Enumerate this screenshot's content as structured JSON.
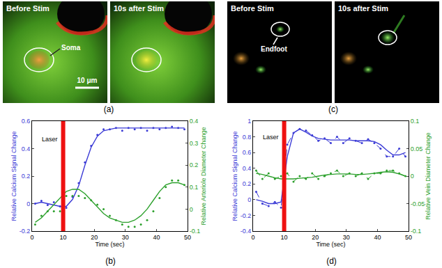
{
  "image_panels": [
    {
      "panel": "(a)",
      "images": [
        {
          "caption": "Before Stim",
          "label": "Soma",
          "scale_bar": "10 μm"
        },
        {
          "caption": "10s after Stim"
        }
      ]
    },
    {
      "panel": "(c)",
      "images": [
        {
          "caption": "Before Stim",
          "label": "Endfoot"
        },
        {
          "caption": "10s after Stim"
        }
      ]
    }
  ],
  "chart_data": [
    {
      "type": "line",
      "panel": "(b)",
      "xlabel": "Time (sec)",
      "ylabel": "Relative Calcium Signal Change",
      "y2label": "Relative Arteriole Diameter Change",
      "x": [
        1,
        3,
        5,
        7,
        9,
        11,
        13,
        15,
        17,
        19,
        21,
        23,
        25,
        27,
        29,
        31,
        33,
        35,
        37,
        39,
        41,
        43,
        45,
        47,
        49
      ],
      "xlim": [
        0,
        50
      ],
      "xticks": [
        0,
        10,
        20,
        30,
        40,
        50
      ],
      "ylim": [
        -0.2,
        0.6
      ],
      "yticks": [
        -0.2,
        0,
        0.2,
        0.4,
        0.6
      ],
      "y2lim": [
        -0.1,
        0.4
      ],
      "y2ticks": [
        -0.1,
        0,
        0.1,
        0.2,
        0.3,
        0.4
      ],
      "grid": false,
      "annotations": [
        {
          "text": "Laser",
          "x": 10,
          "y": 0.47
        }
      ],
      "series": [
        {
          "color": "#3b3bd6",
          "axis": "y",
          "marker": "circle",
          "line_style": "none",
          "values": [
            0.0,
            0.02,
            -0.01,
            0.01,
            -0.02,
            -0.03,
            0.05,
            0.15,
            0.3,
            0.42,
            0.5,
            0.54,
            0.54,
            0.55,
            0.53,
            0.55,
            0.54,
            0.55,
            0.53,
            0.55,
            0.54,
            0.55,
            0.56,
            0.55,
            0.54
          ]
        },
        {
          "color": "#3b3bd6",
          "axis": "y",
          "line_style": "solid",
          "values": [
            0.0,
            0.01,
            0.0,
            -0.01,
            -0.02,
            -0.02,
            0.03,
            0.13,
            0.28,
            0.41,
            0.49,
            0.53,
            0.54,
            0.55,
            0.55,
            0.55,
            0.55,
            0.55,
            0.55,
            0.55,
            0.55,
            0.55,
            0.55,
            0.55,
            0.55
          ]
        },
        {
          "color": "#2ca02c",
          "axis": "y2",
          "marker": "circle",
          "line_style": "none",
          "values": [
            -0.07,
            -0.03,
            -0.01,
            -0.01,
            -0.01,
            0.06,
            0.06,
            0.06,
            0.05,
            0.04,
            0.02,
            0.0,
            -0.03,
            -0.05,
            -0.07,
            -0.08,
            -0.08,
            -0.07,
            -0.05,
            -0.01,
            0.05,
            0.1,
            0.13,
            0.13,
            0.11
          ]
        },
        {
          "color": "#2ca02c",
          "axis": "y2",
          "line_style": "solid",
          "values": [
            -0.06,
            -0.04,
            -0.01,
            0.02,
            0.05,
            0.08,
            0.09,
            0.09,
            0.07,
            0.04,
            0.01,
            -0.02,
            -0.04,
            -0.05,
            -0.06,
            -0.06,
            -0.05,
            -0.03,
            0.0,
            0.04,
            0.08,
            0.11,
            0.12,
            0.12,
            0.11
          ]
        }
      ]
    },
    {
      "type": "line",
      "panel": "(d)",
      "xlabel": "Time (sec)",
      "ylabel": "Relative Calcium Signal Change",
      "y2label": "Relative Vein Diameter Change",
      "x": [
        1,
        3,
        5,
        7,
        9,
        11,
        13,
        15,
        17,
        19,
        21,
        23,
        25,
        27,
        29,
        31,
        33,
        35,
        37,
        39,
        41,
        43,
        45,
        47,
        49
      ],
      "xlim": [
        0,
        50
      ],
      "xticks": [
        0,
        10,
        20,
        30,
        40,
        50
      ],
      "ylim": [
        -0.4,
        1
      ],
      "yticks": [
        -0.4,
        -0.2,
        0,
        0.2,
        0.4,
        0.6,
        0.8,
        1
      ],
      "y2lim": [
        -0.1,
        0.1
      ],
      "y2ticks": [
        -0.1,
        -0.05,
        0,
        0.05,
        0.1
      ],
      "grid": false,
      "annotations": [
        {
          "text": "Laser",
          "x": 10,
          "y": 0.8
        }
      ],
      "series": [
        {
          "color": "#3b3bd6",
          "axis": "y",
          "marker": "circle",
          "line_style": "dashed",
          "values": [
            0.1,
            -0.05,
            -0.08,
            -0.03,
            -0.1,
            0.7,
            0.85,
            0.9,
            0.88,
            0.82,
            0.75,
            0.78,
            0.72,
            0.8,
            0.72,
            0.78,
            0.75,
            0.72,
            0.77,
            0.72,
            0.65,
            0.55,
            0.55,
            0.65,
            0.55
          ]
        },
        {
          "color": "#3b3bd6",
          "axis": "y",
          "line_style": "solid",
          "values": [
            0.0,
            -0.02,
            -0.05,
            -0.05,
            -0.03,
            0.55,
            0.85,
            0.9,
            0.86,
            0.81,
            0.78,
            0.77,
            0.76,
            0.76,
            0.76,
            0.76,
            0.75,
            0.75,
            0.75,
            0.74,
            0.7,
            0.63,
            0.57,
            0.57,
            0.6
          ]
        },
        {
          "color": "#2ca02c",
          "axis": "y2",
          "marker": "circle",
          "line_style": "dashed",
          "values": [
            0.01,
            -0.005,
            0.005,
            -0.005,
            0.0,
            0.005,
            -0.01,
            0.0,
            -0.005,
            0.005,
            -0.005,
            0.0,
            0.005,
            0.01,
            0.0,
            0.005,
            0.0,
            0.005,
            -0.005,
            0.005,
            0.005,
            0.01,
            0.01,
            0.005,
            0.0
          ]
        },
        {
          "color": "#2ca02c",
          "axis": "y2",
          "line_style": "solid",
          "values": [
            0.005,
            0.003,
            0.0,
            -0.003,
            -0.005,
            -0.005,
            -0.005,
            -0.004,
            -0.003,
            -0.002,
            0.0,
            0.002,
            0.003,
            0.004,
            0.004,
            0.004,
            0.003,
            0.003,
            0.004,
            0.005,
            0.007,
            0.008,
            0.007,
            0.004,
            0.0
          ]
        }
      ]
    }
  ]
}
